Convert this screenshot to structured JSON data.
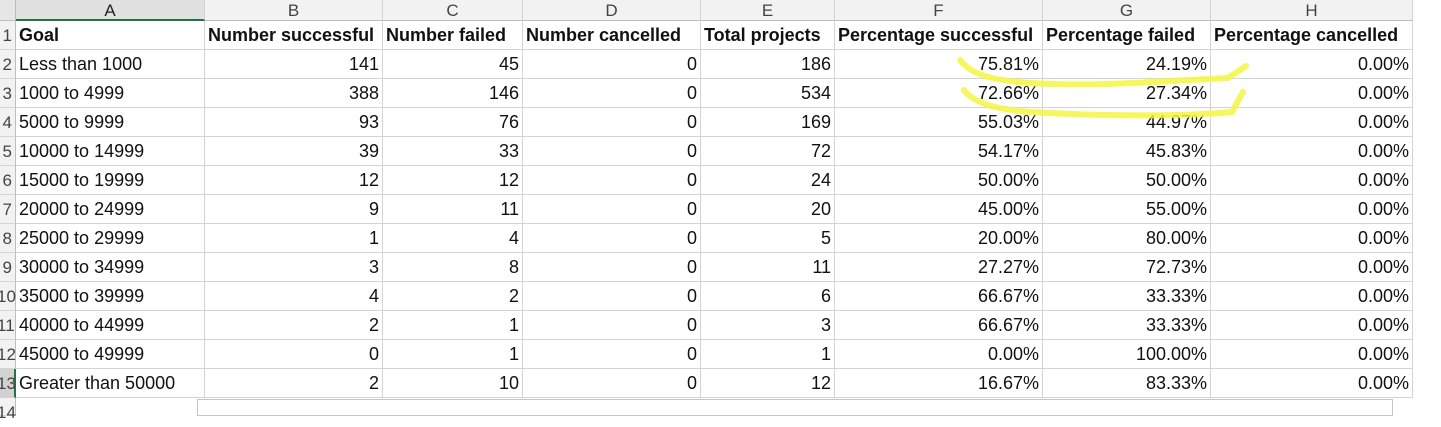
{
  "columns": [
    "A",
    "B",
    "C",
    "D",
    "E",
    "F",
    "G",
    "H"
  ],
  "header_row": [
    "Goal",
    "Number successful",
    "Number failed",
    "Number cancelled",
    "Total projects",
    "Percentage successful",
    "Percentage failed",
    "Percentage cancelled"
  ],
  "rows": [
    {
      "num": "2",
      "cells": [
        "Less than 1000",
        "141",
        "45",
        "0",
        "186",
        "75.81%",
        "24.19%",
        "0.00%"
      ]
    },
    {
      "num": "3",
      "cells": [
        "1000 to 4999",
        "388",
        "146",
        "0",
        "534",
        "72.66%",
        "27.34%",
        "0.00%"
      ]
    },
    {
      "num": "4",
      "cells": [
        "5000 to 9999",
        "93",
        "76",
        "0",
        "169",
        "55.03%",
        "44.97%",
        "0.00%"
      ]
    },
    {
      "num": "5",
      "cells": [
        "10000 to 14999",
        "39",
        "33",
        "0",
        "72",
        "54.17%",
        "45.83%",
        "0.00%"
      ]
    },
    {
      "num": "6",
      "cells": [
        "15000 to 19999",
        "12",
        "12",
        "0",
        "24",
        "50.00%",
        "50.00%",
        "0.00%"
      ]
    },
    {
      "num": "7",
      "cells": [
        "20000 to 24999",
        "9",
        "11",
        "0",
        "20",
        "45.00%",
        "55.00%",
        "0.00%"
      ]
    },
    {
      "num": "8",
      "cells": [
        "25000 to 29999",
        "1",
        "4",
        "0",
        "5",
        "20.00%",
        "80.00%",
        "0.00%"
      ]
    },
    {
      "num": "9",
      "cells": [
        "30000 to 34999",
        "3",
        "8",
        "0",
        "11",
        "27.27%",
        "72.73%",
        "0.00%"
      ]
    },
    {
      "num": "10",
      "cells": [
        "35000 to 39999",
        "4",
        "2",
        "0",
        "6",
        "66.67%",
        "33.33%",
        "0.00%"
      ]
    },
    {
      "num": "11",
      "cells": [
        "40000 to 44999",
        "2",
        "1",
        "0",
        "3",
        "66.67%",
        "33.33%",
        "0.00%"
      ]
    },
    {
      "num": "12",
      "cells": [
        "45000 to 49999",
        "0",
        "1",
        "0",
        "1",
        "0.00%",
        "100.00%",
        "0.00%"
      ]
    },
    {
      "num": "13",
      "cells": [
        "Greater than 50000",
        "2",
        "10",
        "0",
        "12",
        "16.67%",
        "83.33%",
        "0.00%"
      ]
    }
  ],
  "header_row_num": "1",
  "trailing_row_num": "14",
  "selected_column": "A",
  "selected_row": "13",
  "annotation_color": "#f5f542"
}
